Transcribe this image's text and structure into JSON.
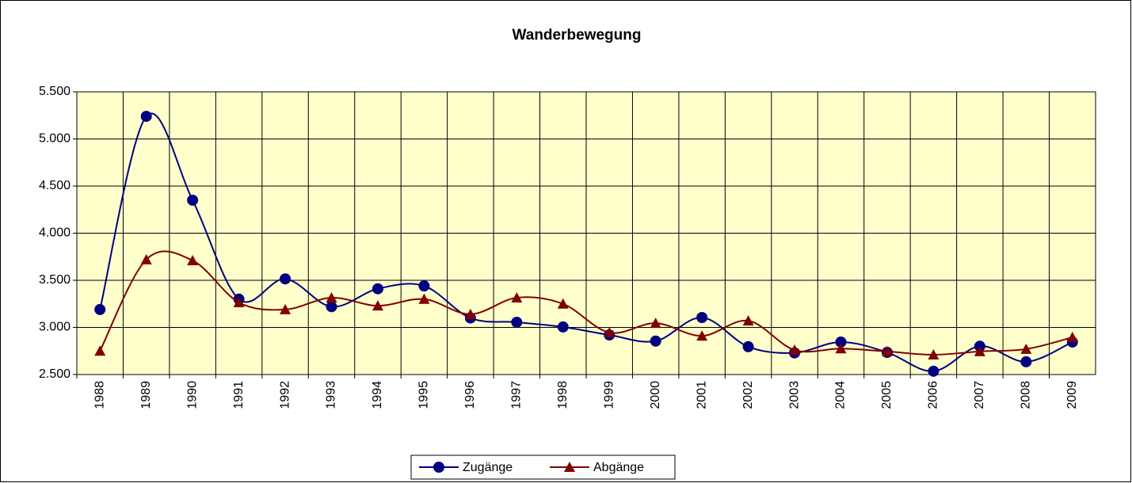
{
  "chart_data": {
    "type": "line",
    "title": "Wanderbewegung",
    "categories": [
      "1988",
      "1989",
      "1990",
      "1991",
      "1992",
      "1993",
      "1994",
      "1995",
      "1996",
      "1997",
      "1998",
      "1999",
      "2000",
      "2001",
      "2002",
      "2003",
      "2004",
      "2005",
      "2006",
      "2007",
      "2008",
      "2009"
    ],
    "series": [
      {
        "name": "Zugänge",
        "color": "#000080",
        "marker": "circle",
        "values": [
          3190,
          5240,
          4350,
          3300,
          3515,
          3220,
          3410,
          3440,
          3100,
          3055,
          3005,
          2920,
          2855,
          3105,
          2795,
          2730,
          2845,
          2735,
          2535,
          2800,
          2635,
          2845
        ]
      },
      {
        "name": "Abgänge",
        "color": "#800000",
        "marker": "triangle",
        "values": [
          2750,
          3720,
          3710,
          3265,
          3190,
          3315,
          3230,
          3300,
          3140,
          3315,
          3250,
          2945,
          3045,
          2910,
          3070,
          2760,
          2775,
          2745,
          2710,
          2745,
          2770,
          2895
        ]
      }
    ],
    "ylim": [
      2500,
      5500
    ],
    "yticks": [
      {
        "value": 2500,
        "label": "2.500"
      },
      {
        "value": 3000,
        "label": "3.000"
      },
      {
        "value": 3500,
        "label": "3.500"
      },
      {
        "value": 4000,
        "label": "4.000"
      },
      {
        "value": 4500,
        "label": "4.500"
      },
      {
        "value": 5000,
        "label": "5.000"
      },
      {
        "value": 5500,
        "label": "5.500"
      }
    ],
    "grid": true,
    "smooth": true,
    "plot_background": "#ffffcc",
    "legend": "bottom"
  }
}
